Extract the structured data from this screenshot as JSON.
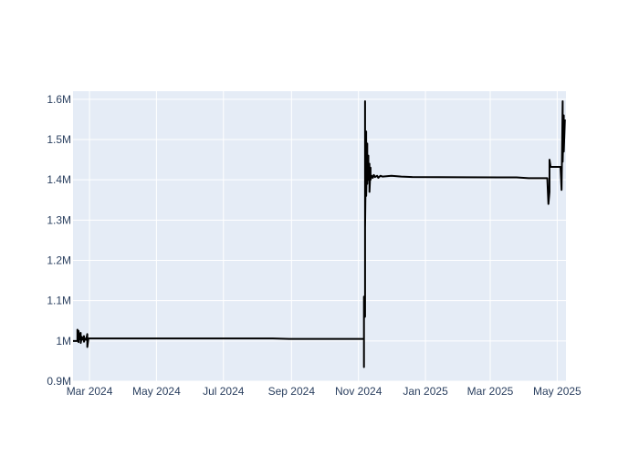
{
  "chart_data": {
    "type": "line",
    "title": "",
    "xlabel": "",
    "ylabel": "",
    "xlim": [
      "2024-02-15",
      "2025-05-09"
    ],
    "ylim": [
      900000,
      1620000
    ],
    "grid": true,
    "legend": "none",
    "x_ticks": [
      {
        "date": "2024-03-01",
        "label": "Mar 2024"
      },
      {
        "date": "2024-05-01",
        "label": "May 2024"
      },
      {
        "date": "2024-07-01",
        "label": "Jul 2024"
      },
      {
        "date": "2024-09-01",
        "label": "Sep 2024"
      },
      {
        "date": "2024-11-01",
        "label": "Nov 2024"
      },
      {
        "date": "2025-01-01",
        "label": "Jan 2025"
      },
      {
        "date": "2025-03-01",
        "label": "Mar 2025"
      },
      {
        "date": "2025-05-01",
        "label": "May 2025"
      }
    ],
    "y_ticks": [
      {
        "value": 900000,
        "label": "0.9M"
      },
      {
        "value": 1000000,
        "label": "1M"
      },
      {
        "value": 1100000,
        "label": "1.1M"
      },
      {
        "value": 1200000,
        "label": "1.2M"
      },
      {
        "value": 1300000,
        "label": "1.3M"
      },
      {
        "value": 1400000,
        "label": "1.4M"
      },
      {
        "value": 1500000,
        "label": "1.5M"
      },
      {
        "value": 1600000,
        "label": "1.6M"
      }
    ],
    "series": [
      {
        "color": "#000000",
        "points": [
          [
            "2024-02-15",
            1000000
          ],
          [
            "2024-02-18",
            1000000
          ],
          [
            "2024-02-19",
            1000000
          ],
          [
            "2024-02-19",
            1028000
          ],
          [
            "2024-02-20",
            997000
          ],
          [
            "2024-02-20",
            1025000
          ],
          [
            "2024-02-21",
            1004000
          ],
          [
            "2024-02-22",
            1020000
          ],
          [
            "2024-02-22",
            995000
          ],
          [
            "2024-02-23",
            1010000
          ],
          [
            "2024-02-24",
            1003000
          ],
          [
            "2024-02-25",
            1012000
          ],
          [
            "2024-02-25",
            998000
          ],
          [
            "2024-02-26",
            1006000
          ],
          [
            "2024-02-27",
            1003000
          ],
          [
            "2024-02-28",
            1017000
          ],
          [
            "2024-02-28",
            985000
          ],
          [
            "2024-02-29",
            1006000
          ],
          [
            "2024-03-10",
            1006000
          ],
          [
            "2024-06-01",
            1006000
          ],
          [
            "2024-08-15",
            1006000
          ],
          [
            "2024-08-30",
            1005000
          ],
          [
            "2024-10-15",
            1005000
          ],
          [
            "2024-11-06",
            1005000
          ],
          [
            "2024-11-06",
            935000
          ],
          [
            "2024-11-06",
            1110000
          ],
          [
            "2024-11-07",
            1060000
          ],
          [
            "2024-11-07",
            1595000
          ],
          [
            "2024-11-07",
            1280000
          ],
          [
            "2024-11-08",
            1520000
          ],
          [
            "2024-11-08",
            1360000
          ],
          [
            "2024-11-09",
            1490000
          ],
          [
            "2024-11-09",
            1390000
          ],
          [
            "2024-11-10",
            1460000
          ],
          [
            "2024-11-10",
            1400000
          ],
          [
            "2024-11-11",
            1440000
          ],
          [
            "2024-11-11",
            1370000
          ],
          [
            "2024-11-12",
            1430000
          ],
          [
            "2024-11-12",
            1400000
          ],
          [
            "2024-11-13",
            1410000
          ],
          [
            "2024-11-14",
            1405000
          ],
          [
            "2024-11-15",
            1412000
          ],
          [
            "2024-11-16",
            1407000
          ],
          [
            "2024-11-18",
            1410000
          ],
          [
            "2024-11-19",
            1405000
          ],
          [
            "2024-11-21",
            1410000
          ],
          [
            "2024-11-23",
            1408000
          ],
          [
            "2024-12-01",
            1410000
          ],
          [
            "2024-12-10",
            1408000
          ],
          [
            "2024-12-20",
            1407000
          ],
          [
            "2025-03-10",
            1406000
          ],
          [
            "2025-03-25",
            1406000
          ],
          [
            "2025-04-05",
            1404000
          ],
          [
            "2025-04-22",
            1404000
          ],
          [
            "2025-04-23",
            1340000
          ],
          [
            "2025-04-24",
            1370000
          ],
          [
            "2025-04-24",
            1450000
          ],
          [
            "2025-04-25",
            1432000
          ],
          [
            "2025-05-04",
            1432000
          ],
          [
            "2025-05-05",
            1375000
          ],
          [
            "2025-05-06",
            1595000
          ],
          [
            "2025-05-06",
            1445000
          ],
          [
            "2025-05-07",
            1560000
          ],
          [
            "2025-05-07",
            1470000
          ],
          [
            "2025-05-08",
            1550000
          ]
        ]
      }
    ]
  }
}
